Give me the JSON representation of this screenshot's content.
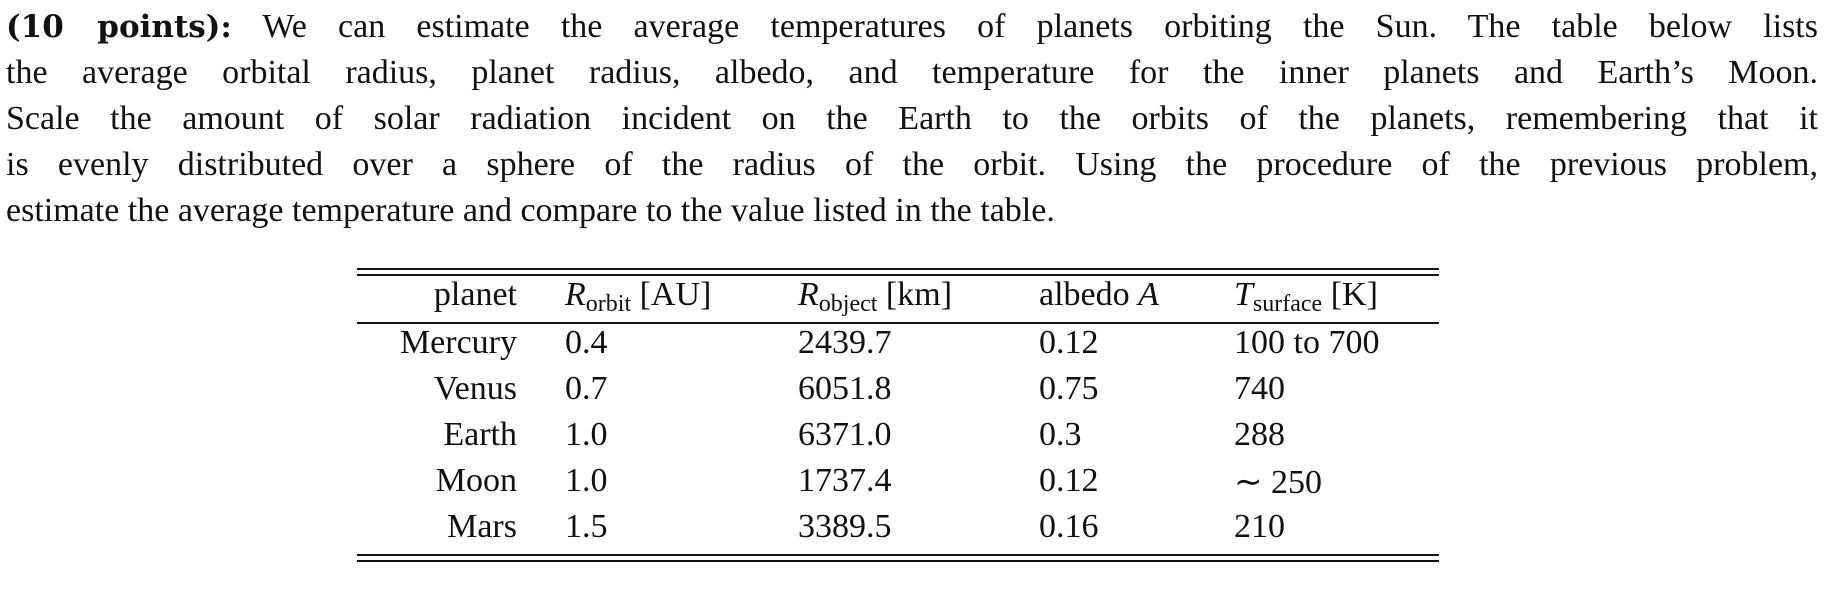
{
  "problem": {
    "label": "(10 points):",
    "lines": [
      "We can estimate the average temperatures of planets orbiting the Sun. The table below lists",
      "the average orbital radius, planet radius, albedo, and temperature for the inner planets and Earth’s Moon.",
      "Scale the amount of solar radiation incident on the Earth to the orbits of the planets, remembering that it",
      "is evenly distributed over a sphere of the radius of the orbit. Using the procedure of the previous problem,",
      "estimate the average temperature and compare to the value listed in the table."
    ]
  },
  "table": {
    "header": [
      {
        "text": "planet"
      },
      {
        "symbol": "R",
        "sub": "orbit",
        "unit": "[AU]"
      },
      {
        "symbol": "R",
        "sub": "object",
        "unit": "[km]"
      },
      {
        "text": "albedo",
        "symbol": "A"
      },
      {
        "symbol": "T",
        "sub": "surface",
        "unit": "[K]"
      }
    ],
    "rows": [
      [
        "Mercury",
        "0.4",
        "2439.7",
        "0.12",
        "100 to 700"
      ],
      [
        "Venus",
        "0.7",
        "6051.8",
        "0.75",
        "740"
      ],
      [
        "Earth",
        "1.0",
        "6371.0",
        "0.3",
        "288"
      ],
      [
        "Moon",
        "1.0",
        "1737.4",
        "0.12",
        "∼ 250"
      ],
      [
        "Mars",
        "1.5",
        "3389.5",
        "0.16",
        "210"
      ]
    ]
  }
}
